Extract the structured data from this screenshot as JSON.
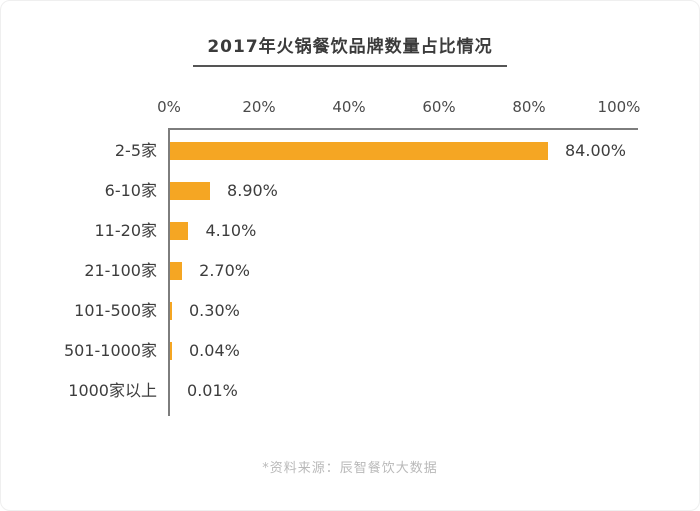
{
  "page": {
    "title": "2017年火锅餐饮品牌数量占比情况",
    "source_note": "*资料来源：辰智餐饮大数据"
  },
  "colors": {
    "bar": "#F5A623",
    "axis_line": "#7D7D7D",
    "title_text": "#3B3B3B",
    "title_underline": "#555555",
    "category_text": "#3D3D3D",
    "value_text": "#3D3D3D",
    "tick_text": "#4A4A4A",
    "source_text": "#B9B9B9",
    "background": "#FFFFFF"
  },
  "chart_data": {
    "type": "bar",
    "orientation": "horizontal",
    "title": "2017年火锅餐饮品牌数量占比情况",
    "categories": [
      "2-5家",
      "6-10家",
      "11-20家",
      "21-100家",
      "101-500家",
      "501-1000家",
      "1000家以上"
    ],
    "values": [
      84.0,
      8.9,
      4.1,
      2.7,
      0.3,
      0.04,
      0.01
    ],
    "value_labels": [
      "84.00%",
      "8.90%",
      "4.10%",
      "2.70%",
      "0.30%",
      "0.04%",
      "0.01%"
    ],
    "x_ticks": [
      "0%",
      "20%",
      "40%",
      "60%",
      "80%",
      "100%"
    ],
    "x_tick_values": [
      0,
      20,
      40,
      60,
      80,
      100
    ],
    "xlim": [
      0,
      100
    ],
    "unit": "percent",
    "grid": false,
    "legend": false,
    "bar_color": "#F5A623",
    "source": "*资料来源：辰智餐饮大数据"
  }
}
